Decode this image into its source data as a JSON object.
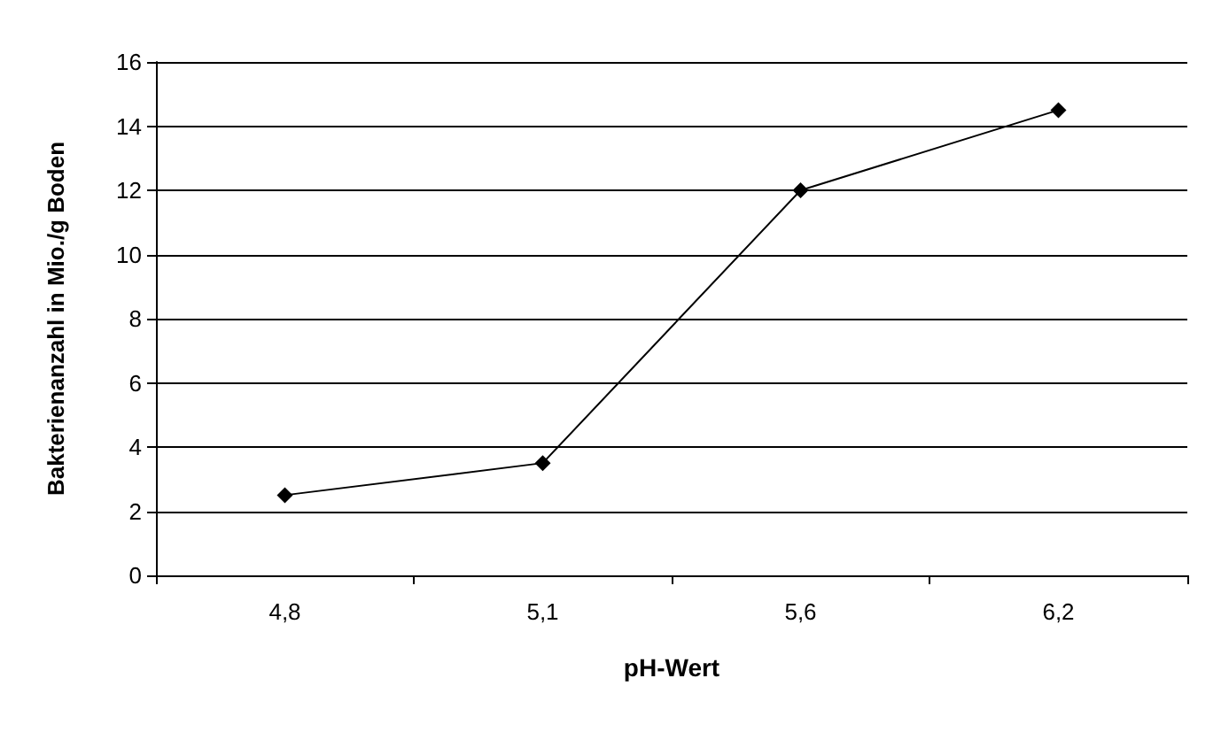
{
  "chart_data": {
    "type": "line",
    "xlabel": "pH-Wert",
    "ylabel": "Bakterienanzahl in Mio./g Boden",
    "categories": [
      "4,8",
      "5,1",
      "5,6",
      "6,2"
    ],
    "series": [
      {
        "color": "#000000",
        "values": [
          2.5,
          3.5,
          12,
          14.5
        ]
      }
    ],
    "ylim": [
      0,
      16
    ],
    "yticks": [
      0,
      2,
      4,
      6,
      8,
      10,
      12,
      14,
      16
    ],
    "grid": "y",
    "marker": "diamond",
    "line_style": "solid"
  }
}
